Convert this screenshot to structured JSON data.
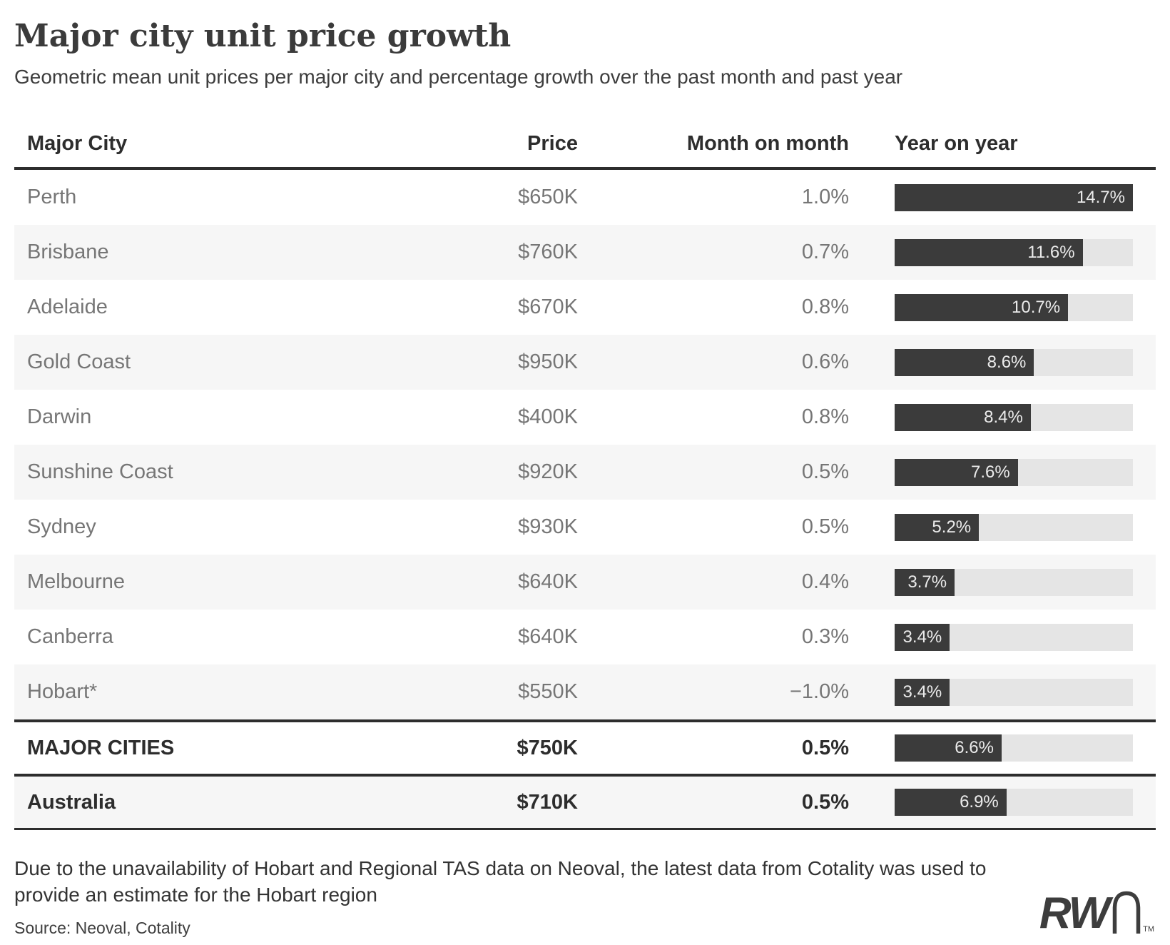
{
  "header": {
    "title": "Major city unit price growth",
    "subtitle": "Geometric mean unit prices per major city and percentage growth over the past month and past year"
  },
  "table": {
    "columns": {
      "city": "Major City",
      "price": "Price",
      "mom": "Month on month",
      "yoy": "Year on year"
    },
    "yoy_max": 14.7,
    "rows": [
      {
        "city": "Perth",
        "price": "$650K",
        "mom": "1.0%",
        "yoy": 14.7,
        "yoy_label": "14.7%",
        "bold": false
      },
      {
        "city": "Brisbane",
        "price": "$760K",
        "mom": "0.7%",
        "yoy": 11.6,
        "yoy_label": "11.6%",
        "bold": false
      },
      {
        "city": "Adelaide",
        "price": "$670K",
        "mom": "0.8%",
        "yoy": 10.7,
        "yoy_label": "10.7%",
        "bold": false
      },
      {
        "city": "Gold Coast",
        "price": "$950K",
        "mom": "0.6%",
        "yoy": 8.6,
        "yoy_label": "8.6%",
        "bold": false
      },
      {
        "city": "Darwin",
        "price": "$400K",
        "mom": "0.8%",
        "yoy": 8.4,
        "yoy_label": "8.4%",
        "bold": false
      },
      {
        "city": "Sunshine Coast",
        "price": "$920K",
        "mom": "0.5%",
        "yoy": 7.6,
        "yoy_label": "7.6%",
        "bold": false
      },
      {
        "city": "Sydney",
        "price": "$930K",
        "mom": "0.5%",
        "yoy": 5.2,
        "yoy_label": "5.2%",
        "bold": false
      },
      {
        "city": "Melbourne",
        "price": "$640K",
        "mom": "0.4%",
        "yoy": 3.7,
        "yoy_label": "3.7%",
        "bold": false
      },
      {
        "city": "Canberra",
        "price": "$640K",
        "mom": "0.3%",
        "yoy": 3.4,
        "yoy_label": "3.4%",
        "bold": false
      },
      {
        "city": "Hobart*",
        "price": "$550K",
        "mom": "−1.0%",
        "yoy": 3.4,
        "yoy_label": "3.4%",
        "bold": false
      },
      {
        "city": "MAJOR CITIES",
        "price": "$750K",
        "mom": "0.5%",
        "yoy": 6.6,
        "yoy_label": "6.6%",
        "bold": true
      },
      {
        "city": "Australia",
        "price": "$710K",
        "mom": "0.5%",
        "yoy": 6.9,
        "yoy_label": "6.9%",
        "bold": true
      }
    ]
  },
  "footer": {
    "footnote": "Due to the unavailability of Hobart and Regional TAS data on Neoval, the latest data from Cotality was used to provide an estimate for the Hobart region",
    "source": "Source: Neoval, Cotality",
    "logo_text": "RW",
    "logo_tm": "TM"
  },
  "colors": {
    "bar_fill": "#3b3b3b",
    "bar_track": "#e5e5e5",
    "stripe_row": "#f6f6f6",
    "rule": "#2d2d2d"
  },
  "chart_data": {
    "type": "bar",
    "orientation": "horizontal",
    "title": "Major city unit price growth",
    "subtitle": "Geometric mean unit prices per major city and percentage growth over the past month and past year",
    "categories": [
      "Perth",
      "Brisbane",
      "Adelaide",
      "Gold Coast",
      "Darwin",
      "Sunshine Coast",
      "Sydney",
      "Melbourne",
      "Canberra",
      "Hobart*",
      "MAJOR CITIES",
      "Australia"
    ],
    "series": [
      {
        "name": "Price ($K)",
        "values": [
          650,
          760,
          670,
          950,
          400,
          920,
          930,
          640,
          640,
          550,
          750,
          710
        ]
      },
      {
        "name": "Month on month (%)",
        "values": [
          1.0,
          0.7,
          0.8,
          0.6,
          0.8,
          0.5,
          0.5,
          0.4,
          0.3,
          -1.0,
          0.5,
          0.5
        ]
      },
      {
        "name": "Year on year (%)",
        "values": [
          14.7,
          11.6,
          10.7,
          8.6,
          8.4,
          7.6,
          5.2,
          3.7,
          3.4,
          3.4,
          6.6,
          6.9
        ]
      }
    ],
    "bar_series_plotted": "Year on year (%)",
    "xlim": [
      0,
      14.7
    ],
    "grid": false,
    "legend_position": "none",
    "data_labels": "inside-end"
  }
}
